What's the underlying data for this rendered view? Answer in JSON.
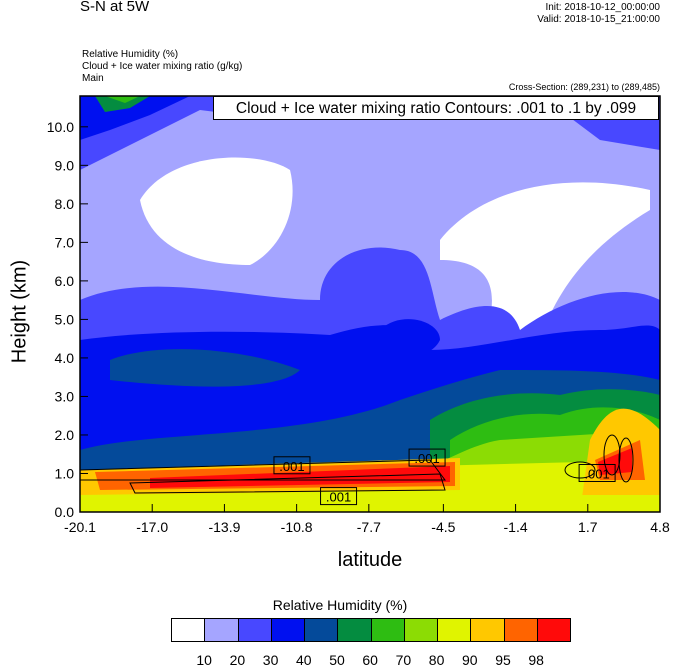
{
  "header": {
    "title": "S-N at 5W",
    "init": "Init: 2018-10-12_00:00:00",
    "valid": "Valid: 2018-10-15_21:00:00",
    "fields": [
      "Relative Humidity   (%)",
      "Cloud + Ice water mixing ratio   (g/kg)",
      "Main"
    ],
    "cross_section": "Cross-Section: (289,231) to (289,485)"
  },
  "chart_data": {
    "type": "heatmap",
    "title": "Cloud + Ice water mixing ratio Contours: .001 to .1 by .099",
    "xlabel": "latitude",
    "ylabel": "Height (km)",
    "xlim": [
      -20.1,
      4.8
    ],
    "ylim": [
      0,
      10.8
    ],
    "xticks": [
      "-20.1",
      "-17.0",
      "-13.9",
      "-10.8",
      "-7.7",
      "-4.5",
      "-1.4",
      "1.7",
      "4.8"
    ],
    "xtick_values": [
      -20.1,
      -17.0,
      -13.9,
      -10.8,
      -7.7,
      -4.5,
      -1.4,
      1.7,
      4.8
    ],
    "yticks": [
      "0.0",
      "1.0",
      "2.0",
      "3.0",
      "4.0",
      "5.0",
      "6.0",
      "7.0",
      "8.0",
      "9.0",
      "10.0"
    ],
    "contour_labels": [
      ".001",
      ".001",
      ".001",
      ".001"
    ],
    "contour_label_positions": [
      [
        -11.0,
        1.2
      ],
      [
        -5.2,
        1.4
      ],
      [
        -9.0,
        0.4
      ],
      [
        2.1,
        1.0
      ]
    ],
    "colorbar": {
      "title": "Relative Humidity  (%)",
      "levels": [
        "10",
        "20",
        "30",
        "40",
        "50",
        "60",
        "70",
        "80",
        "90",
        "95",
        "98"
      ],
      "colors": [
        "#ffffff",
        "#a5a5ff",
        "#4848ff",
        "#0010f0",
        "#044a9a",
        "#048c40",
        "#2ebd12",
        "#8cdc04",
        "#e0f400",
        "#ffc800",
        "#ff6400",
        "#ff0a0a"
      ]
    }
  }
}
